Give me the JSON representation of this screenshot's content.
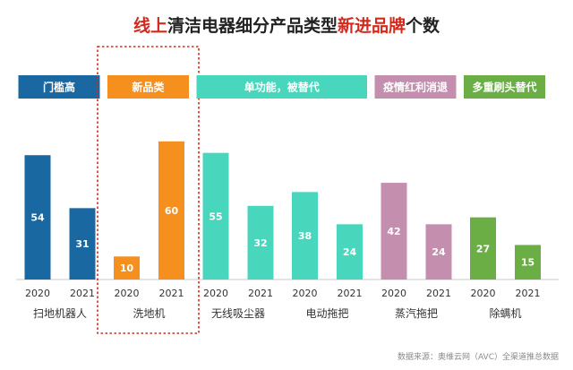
{
  "title": {
    "red1": "线上",
    "dark1": "清洁电器细分产品类型",
    "red2": "新进品牌",
    "dark2": "个数"
  },
  "source": "数据来源：奥维云网（AVC）全渠道推总数据",
  "highlight_color": "#d42a1e",
  "chart_data": {
    "type": "bar",
    "title": "线上清洁电器细分产品类型新进品牌个数",
    "ylim": [
      0,
      70
    ],
    "grid": false,
    "legend": "none",
    "groups": [
      {
        "tag": "门槛高",
        "color": "#1a68a2",
        "products": [
          {
            "name": "扫地机器人",
            "values": [
              {
                "year": "2020",
                "value": 54
              },
              {
                "year": "2021",
                "value": 31
              }
            ]
          }
        ]
      },
      {
        "tag": "新品类",
        "color": "#f5901e",
        "highlighted": true,
        "products": [
          {
            "name": "洗地机",
            "values": [
              {
                "year": "2020",
                "value": 10
              },
              {
                "year": "2021",
                "value": 60
              }
            ]
          }
        ]
      },
      {
        "tag": "单功能，被替代",
        "color": "#48d7bd",
        "products": [
          {
            "name": "无线吸尘器",
            "values": [
              {
                "year": "2020",
                "value": 55
              },
              {
                "year": "2021",
                "value": 32
              }
            ]
          },
          {
            "name": "电动拖把",
            "values": [
              {
                "year": "2020",
                "value": 38
              },
              {
                "year": "2021",
                "value": 24
              }
            ]
          }
        ]
      },
      {
        "tag": "疫情红利消退",
        "color": "#c48fae",
        "products": [
          {
            "name": "蒸汽拖把",
            "values": [
              {
                "year": "2020",
                "value": 42
              },
              {
                "year": "2021",
                "value": 24
              }
            ]
          }
        ]
      },
      {
        "tag": "多重刷头替代",
        "color": "#6bae45",
        "products": [
          {
            "name": "除螨机",
            "values": [
              {
                "year": "2020",
                "value": 27
              },
              {
                "year": "2021",
                "value": 15
              }
            ]
          }
        ]
      }
    ]
  }
}
